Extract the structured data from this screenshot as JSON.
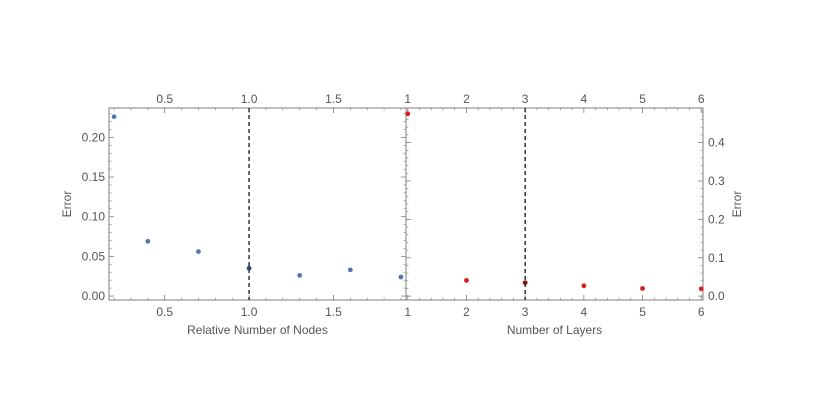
{
  "chart_data": [
    {
      "type": "scatter",
      "title": "",
      "xlabel": "Relative Number of Nodes",
      "ylabel": "Error",
      "xlim": [
        0.17,
        1.93
      ],
      "ylim": [
        -0.005,
        0.237
      ],
      "xticks": [
        {
          "value": 0.5,
          "label": "0.5"
        },
        {
          "value": 1.0,
          "label": "1.0"
        },
        {
          "value": 1.5,
          "label": "1.5"
        }
      ],
      "yticks": [
        {
          "value": 0.0,
          "label": "0.00"
        },
        {
          "value": 0.05,
          "label": "0.05"
        },
        {
          "value": 0.1,
          "label": "0.10"
        },
        {
          "value": 0.15,
          "label": "0.15"
        },
        {
          "value": 0.2,
          "label": "0.20"
        }
      ],
      "reference_line_x": 1.0,
      "series": [
        {
          "color": "#4f79b0",
          "points": [
            {
              "x": 0.2,
              "y": 0.226
            },
            {
              "x": 0.4,
              "y": 0.069
            },
            {
              "x": 0.7,
              "y": 0.056
            },
            {
              "x": 1.0,
              "y": 0.035
            },
            {
              "x": 1.3,
              "y": 0.026
            },
            {
              "x": 1.6,
              "y": 0.033
            },
            {
              "x": 1.9,
              "y": 0.024
            }
          ]
        }
      ],
      "grid": false,
      "frame_ticks_mirrored": true
    },
    {
      "type": "scatter",
      "title": "",
      "xlabel": "Number of Layers",
      "ylabel": "Error",
      "y_axis_side": "right",
      "xlim": [
        0.97,
        6.03
      ],
      "ylim": [
        -0.01,
        0.49
      ],
      "xticks": [
        {
          "value": 1,
          "label": "1"
        },
        {
          "value": 2,
          "label": "2"
        },
        {
          "value": 3,
          "label": "3"
        },
        {
          "value": 4,
          "label": "4"
        },
        {
          "value": 5,
          "label": "5"
        },
        {
          "value": 6,
          "label": "6"
        }
      ],
      "yticks": [
        {
          "value": 0.0,
          "label": "0.0"
        },
        {
          "value": 0.1,
          "label": "0.1"
        },
        {
          "value": 0.2,
          "label": "0.2"
        },
        {
          "value": 0.3,
          "label": "0.3"
        },
        {
          "value": 0.4,
          "label": "0.4"
        }
      ],
      "reference_line_x": 3,
      "series": [
        {
          "color": "#dd1c1c",
          "points": [
            {
              "x": 1,
              "y": 0.475
            },
            {
              "x": 2,
              "y": 0.041
            },
            {
              "x": 3,
              "y": 0.035
            },
            {
              "x": 4,
              "y": 0.027
            },
            {
              "x": 5,
              "y": 0.02
            },
            {
              "x": 6,
              "y": 0.019
            }
          ]
        }
      ],
      "grid": false,
      "frame_ticks_mirrored": true
    }
  ]
}
